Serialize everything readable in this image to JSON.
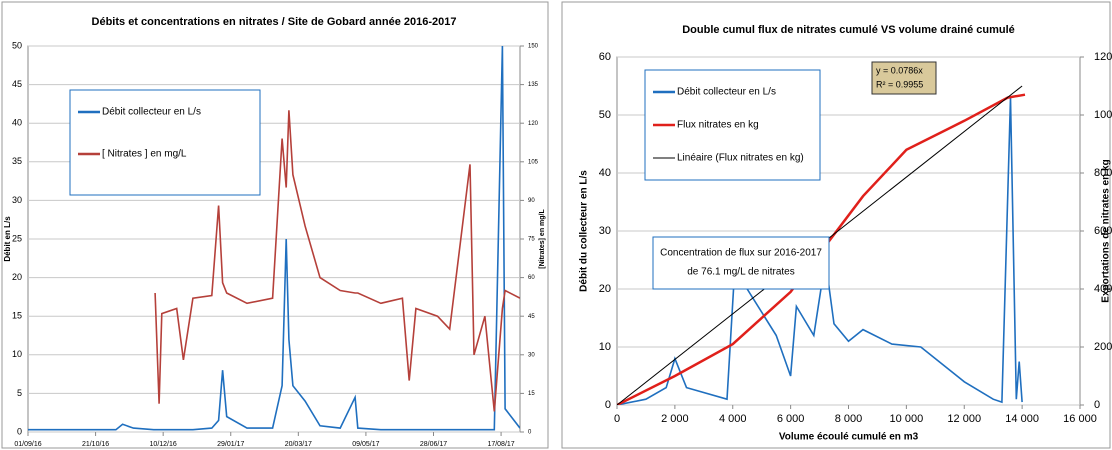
{
  "chart_data": [
    {
      "type": "line",
      "title": "Débits et concentrations en nitrates / Site de Gobard année 2016-2017",
      "ylabel": "Débit en L/s",
      "y2label": "[Nitrates] en mg/L",
      "x": [
        "01/09/16",
        "01/10/16",
        "05/11/16",
        "10/11/16",
        "18/11/16",
        "03/12/16",
        "04/12/16",
        "07/12/16",
        "09/12/16",
        "20/12/16",
        "25/12/16",
        "01/01/17",
        "15/01/17",
        "20/01/17",
        "23/01/17",
        "26/01/17",
        "10/02/17",
        "01/03/17",
        "08/03/17",
        "11/03/17",
        "13/03/17",
        "16/03/17",
        "25/03/17",
        "05/04/17",
        "20/04/17",
        "01/05/17",
        "03/05/17",
        "20/05/17",
        "05/06/17",
        "10/06/17",
        "15/06/17",
        "01/07/17",
        "10/07/17",
        "25/07/17",
        "28/07/17",
        "05/08/17",
        "12/08/17",
        "18/08/17",
        "20/08/17",
        "31/08/17"
      ],
      "xlim": [
        "01/09/16",
        "31/08/17"
      ],
      "xticks": [
        "01/09/16",
        "21/10/16",
        "10/12/16",
        "29/01/17",
        "20/03/17",
        "09/05/17",
        "28/06/17",
        "17/08/17"
      ],
      "ylim": [
        0,
        50
      ],
      "yticks": [
        0,
        5,
        10,
        15,
        20,
        25,
        30,
        35,
        40,
        45,
        50
      ],
      "y2lim": [
        0,
        150
      ],
      "y2ticks": [
        0,
        15,
        30,
        45,
        60,
        75,
        90,
        105,
        120,
        135,
        150
      ],
      "grid": true,
      "series": [
        {
          "name": "Débit collecteur en L/s",
          "color": "#1f6fbf",
          "values": [
            0.3,
            0.3,
            0.3,
            1.0,
            0.5,
            0.3,
            0.3,
            0.3,
            0.3,
            0.3,
            0.3,
            0.3,
            0.5,
            1.5,
            8,
            2,
            0.5,
            0.5,
            6,
            25,
            12,
            6,
            4,
            0.8,
            0.5,
            4.5,
            0.5,
            0.3,
            0.3,
            0.3,
            0.3,
            0.3,
            0.3,
            0.3,
            0.3,
            0.3,
            0.3,
            50,
            3,
            0.5
          ]
        },
        {
          "name": "[ Nitrates ] en mg/L",
          "color": "#b5403a",
          "axis": "y2",
          "values": [
            null,
            null,
            null,
            null,
            null,
            null,
            54,
            11,
            46,
            48,
            28,
            52,
            53,
            88,
            58,
            54,
            50,
            52,
            114,
            95,
            125,
            100,
            80,
            60,
            55,
            54,
            54,
            50,
            52,
            20,
            48,
            45,
            40,
            104,
            30,
            45,
            8,
            48,
            55,
            52
          ]
        }
      ]
    },
    {
      "type": "line",
      "title": "Double cumul flux de nitrates cumulé VS volume drainé cumulé",
      "xlabel": "Volume écoulé cumulé en m3",
      "ylabel": "Débit du collecteur en L/s",
      "y2label": "Exportations de nitrates en kg",
      "xlim": [
        0,
        16000
      ],
      "xticks": [
        0,
        {
          "value": 2000,
          "label": "2 000"
        },
        {
          "value": 4000,
          "label": "4 000"
        },
        {
          "value": 6000,
          "label": "6 000"
        },
        {
          "value": 8000,
          "label": "8 000"
        },
        {
          "value": 10000,
          "label": "10 000"
        },
        {
          "value": 12000,
          "label": "12 000"
        },
        {
          "value": 14000,
          "label": "14 000"
        },
        {
          "value": 16000,
          "label": "16 000"
        }
      ],
      "ylim": [
        0,
        60
      ],
      "yticks": [
        0,
        10,
        20,
        30,
        40,
        50,
        60
      ],
      "y2lim": [
        0,
        1200
      ],
      "y2ticks": [
        0,
        200,
        400,
        600,
        800,
        1000,
        1200
      ],
      "grid": true,
      "annotation": [
        "Concentration de flux sur 2016-2017",
        "de 76.1 mg/L de nitrates"
      ],
      "trend_label": [
        "y = 0.0786x",
        "R² = 0.9955"
      ],
      "series": [
        {
          "name": "Débit collecteur en L/s",
          "color": "#1f6fbf",
          "x": [
            0,
            1000,
            1700,
            2000,
            2400,
            3800,
            4100,
            4500,
            5500,
            6000,
            6200,
            6800,
            7200,
            7500,
            8000,
            8500,
            9500,
            10500,
            12000,
            13000,
            13300,
            13600,
            13800,
            13900,
            14000
          ],
          "values": [
            0,
            1,
            3,
            8,
            3,
            1,
            26,
            20,
            12,
            5,
            17,
            12,
            25,
            14,
            11,
            13,
            10.5,
            10,
            4,
            1,
            0.5,
            53,
            1,
            7.5,
            0.5
          ]
        },
        {
          "name": "Flux nitrates en kg",
          "color": "#e0201b",
          "axis": "y2",
          "x": [
            0,
            2000,
            4000,
            6000,
            8500,
            10000,
            12000,
            13500,
            14100
          ],
          "values": [
            0,
            100,
            210,
            390,
            720,
            880,
            980,
            1060,
            1070
          ]
        },
        {
          "name": "Linéaire (Flux nitrates en kg)",
          "color": "#000000",
          "axis": "y2",
          "x": [
            0,
            14000
          ],
          "values": [
            0,
            1100
          ]
        }
      ]
    }
  ]
}
